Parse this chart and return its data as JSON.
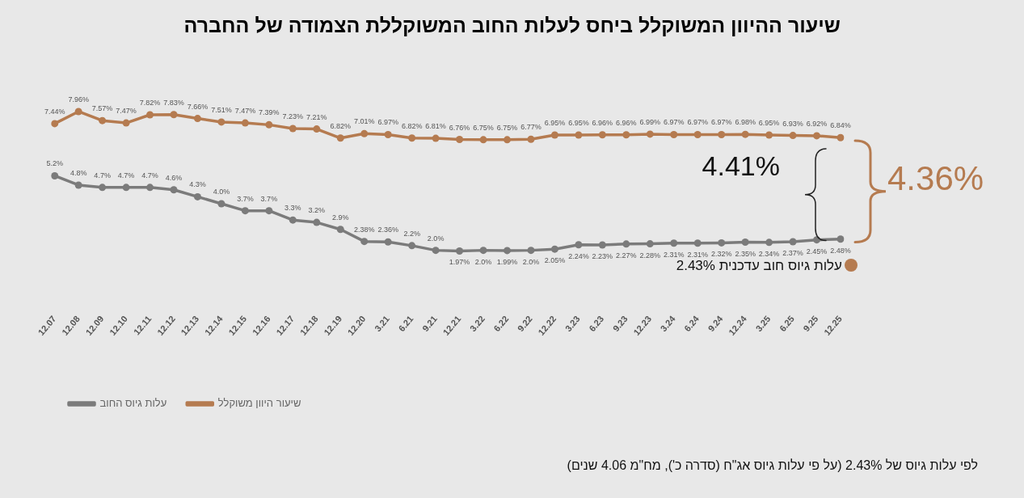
{
  "chart_data": {
    "type": "line",
    "title": "שיעור ההיוון המשוקלל ביחס לעלות החוב המשוקללת הצמודה של החברה",
    "categories": [
      "12.07",
      "12.08",
      "12.09",
      "12.10",
      "12.11",
      "12.12",
      "12.13",
      "12.14",
      "12.15",
      "12.16",
      "12.17",
      "12.18",
      "12.19",
      "12.20",
      "3.21",
      "6.21",
      "9.21",
      "12.21",
      "3.22",
      "6.22",
      "9.22",
      "12.22",
      "3.23",
      "6.23",
      "9.23",
      "12.23",
      "3.24",
      "6.24",
      "9.24",
      "12.24",
      "3.25",
      "6.25",
      "9.25",
      "12.25"
    ],
    "series": [
      {
        "name": "עלות גיוס החוב",
        "color": "#7b7b7b",
        "values": [
          5.2,
          4.8,
          4.7,
          4.7,
          4.7,
          4.6,
          4.3,
          4.0,
          3.7,
          3.7,
          3.3,
          3.2,
          2.9,
          2.38,
          2.36,
          2.2,
          2.0,
          1.97,
          2.0,
          1.99,
          2.0,
          2.05,
          2.24,
          2.23,
          2.27,
          2.28,
          2.31,
          2.31,
          2.32,
          2.35,
          2.34,
          2.37,
          2.45,
          2.48
        ],
        "value_labels": [
          "5.2%",
          "4.8%",
          "4.7%",
          "4.7%",
          "4.7%",
          "4.6%",
          "4.3%",
          "4.0%",
          "3.7%",
          "3.7%",
          "3.3%",
          "3.2%",
          "2.9%",
          "2.38%",
          "2.36%",
          "2.2%",
          "2.0%",
          "1.97%",
          "2.0%",
          "1.99%",
          "2.0%",
          "2.05%",
          "2.24%",
          "2.23%",
          "2.27%",
          "2.28%",
          "2.31%",
          "2.31%",
          "2.32%",
          "2.35%",
          "2.34%",
          "2.37%",
          "2.45%",
          "2.48%"
        ]
      },
      {
        "name": "שיעור היוון משוקלל",
        "color": "#b57b50",
        "values": [
          7.44,
          7.96,
          7.57,
          7.47,
          7.82,
          7.83,
          7.66,
          7.51,
          7.47,
          7.39,
          7.23,
          7.21,
          6.82,
          7.01,
          6.97,
          6.82,
          6.81,
          6.76,
          6.75,
          6.75,
          6.77,
          6.95,
          6.95,
          6.96,
          6.96,
          6.99,
          6.97,
          6.97,
          6.97,
          6.98,
          6.95,
          6.93,
          6.92,
          6.84
        ],
        "value_labels": [
          "7.44%",
          "7.96%",
          "7.57%",
          "7.47%",
          "7.82%",
          "7.83%",
          "7.66%",
          "7.51%",
          "7.47%",
          "7.39%",
          "7.23%",
          "7.21%",
          "6.82%",
          "7.01%",
          "6.97%",
          "6.82%",
          "6.81%",
          "6.76%",
          "6.75%",
          "6.75%",
          "6.77%",
          "6.95%",
          "6.95%",
          "6.96%",
          "6.96%",
          "6.99%",
          "6.97%",
          "6.97%",
          "6.97%",
          "6.98%",
          "6.95%",
          "6.93%",
          "6.92%",
          "6.84%"
        ]
      }
    ],
    "annotations": [
      "4.41%",
      "4.36%",
      "עלות גיוס חוב עדכנית 2.43%",
      "לפי עלות גיוס של 2.43% (על פי עלות גיוס אג\"ח (סדרה כ'), מח\"מ 4.06 שנים)"
    ],
    "grid": false,
    "legend": "bottom left",
    "marker": "circle",
    "line_style": "solid",
    "tick_labels": "x"
  }
}
